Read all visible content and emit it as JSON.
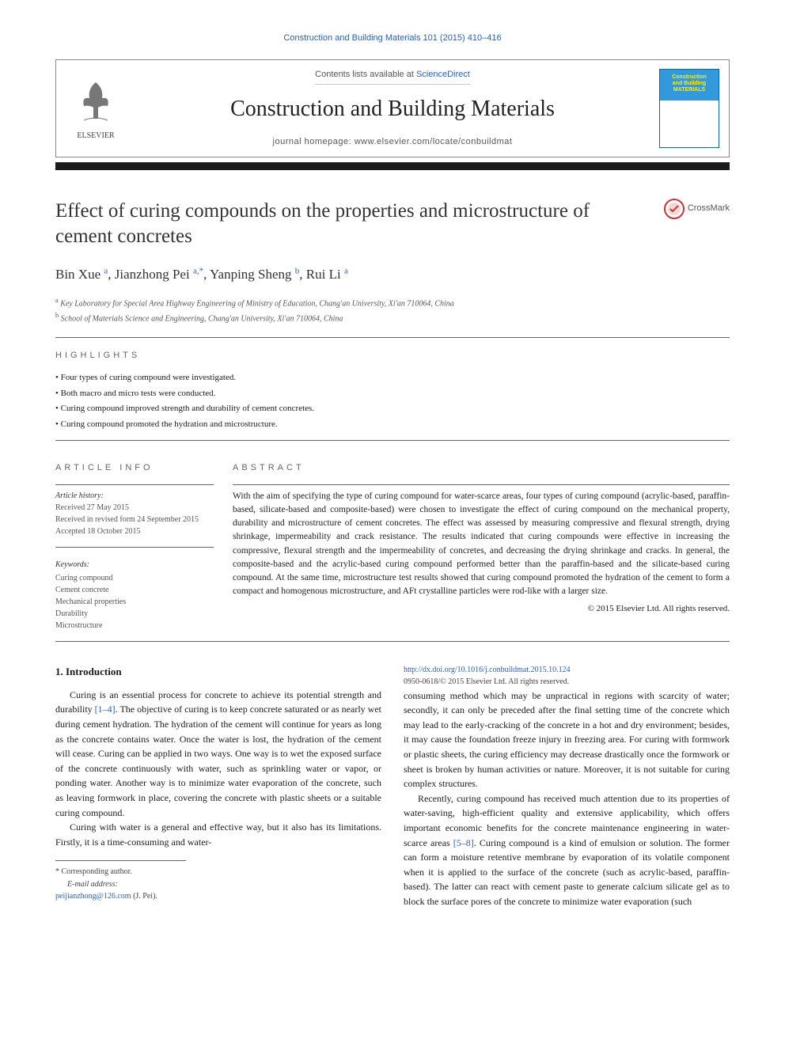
{
  "citation": "Construction and Building Materials 101 (2015) 410–416",
  "header": {
    "contents_prefix": "Contents lists available at ",
    "contents_link": "ScienceDirect",
    "journal_name": "Construction and Building Materials",
    "homepage_prefix": "journal homepage: ",
    "homepage_url": "www.elsevier.com/locate/conbuildmat",
    "elsevier_label": "ELSEVIER",
    "cover_line1": "Construction",
    "cover_line2": "and Building",
    "cover_line3": "MATERIALS"
  },
  "crossmark": "CrossMark",
  "title": "Effect of curing compounds on the properties and microstructure of cement concretes",
  "authors_html": "Bin Xue <sup>a</sup>, Jianzhong Pei <sup>a,*</sup>, Yanping Sheng <sup>b</sup>, Rui Li <sup>a</sup>",
  "affiliations": [
    "Key Laboratory for Special Area Highway Engineering of Ministry of Education, Chang'an University, Xi'an 710064, China",
    "School of Materials Science and Engineering, Chang'an University, Xi'an 710064, China"
  ],
  "aff_sup": [
    "a",
    "b"
  ],
  "highlights_label": "highlights",
  "highlights": [
    "Four types of curing compound were investigated.",
    "Both macro and micro tests were conducted.",
    "Curing compound improved strength and durability of cement concretes.",
    "Curing compound promoted the hydration and microstructure."
  ],
  "article_info_label": "article info",
  "abstract_label": "abstract",
  "history": {
    "label": "Article history:",
    "received": "Received 27 May 2015",
    "revised": "Received in revised form 24 September 2015",
    "accepted": "Accepted 18 October 2015"
  },
  "keywords_label": "Keywords:",
  "keywords": [
    "Curing compound",
    "Cement concrete",
    "Mechanical properties",
    "Durability",
    "Microstructure"
  ],
  "abstract": "With the aim of specifying the type of curing compound for water-scarce areas, four types of curing compound (acrylic-based, paraffin-based, silicate-based and composite-based) were chosen to investigate the effect of curing compound on the mechanical property, durability and microstructure of cement concretes. The effect was assessed by measuring compressive and flexural strength, drying shrinkage, impermeability and crack resistance. The results indicated that curing compounds were effective in increasing the compressive, flexural strength and the impermeability of concretes, and decreasing the drying shrinkage and cracks. In general, the composite-based and the acrylic-based curing compound performed better than the paraffin-based and the silicate-based curing compound. At the same time, microstructure test results showed that curing compound promoted the hydration of the cement to form a compact and homogenous microstructure, and AFt crystalline particles were rod-like with a larger size.",
  "copyright": "© 2015 Elsevier Ltd. All rights reserved.",
  "intro_heading": "1. Introduction",
  "intro_p1_a": "Curing is an essential process for concrete to achieve its potential strength and durability ",
  "intro_p1_ref": "[1–4]",
  "intro_p1_b": ". The objective of curing is to keep concrete saturated or as nearly wet during cement hydration. The hydration of the cement will continue for years as long as the concrete contains water. Once the water is lost, the hydration of the cement will cease. Curing can be applied in two ways. One way is to wet the exposed surface of the concrete continuously with water, such as sprinkling water or vapor, or ponding water. Another way is to minimize water evaporation of the concrete, such as leaving formwork in place, covering the concrete with plastic sheets or a suitable curing compound.",
  "intro_p2": "Curing with water is a general and effective way, but it also has its limitations. Firstly, it is a time-consuming and water-",
  "intro_p2_cont": "consuming method which may be unpractical in regions with scarcity of water; secondly, it can only be preceded after the final setting time of the concrete which may lead to the early-cracking of the concrete in a hot and dry environment; besides, it may cause the foundation freeze injury in freezing area. For curing with formwork or plastic sheets, the curing efficiency may decrease drastically once the formwork or sheet is broken by human activities or nature. Moreover, it is not suitable for curing complex structures.",
  "intro_p3_a": "Recently, curing compound has received much attention due to its properties of water-saving, high-efficient quality and extensive applicability, which offers important economic benefits for the concrete maintenance engineering in water-scarce areas ",
  "intro_p3_ref": "[5–8]",
  "intro_p3_b": ". Curing compound is a kind of emulsion or solution. The former can form a moisture retentive membrane by evaporation of its volatile component when it is applied to the surface of the concrete (such as acrylic-based, paraffin-based). The latter can react with cement paste to generate calcium silicate gel as to block the surface pores of the concrete to minimize water evaporation (such",
  "footnote": {
    "corr": "* Corresponding author.",
    "email_label": "E-mail address: ",
    "email": "peijianzhong@126.com",
    "email_suffix": " (J. Pei)."
  },
  "doi": {
    "link": "http://dx.doi.org/10.1016/j.conbuildmat.2015.10.124",
    "line2": "0950-0618/© 2015 Elsevier Ltd. All rights reserved."
  },
  "colors": {
    "link": "#2a5fb8",
    "rule": "#1a1a1a",
    "border": "#666"
  }
}
